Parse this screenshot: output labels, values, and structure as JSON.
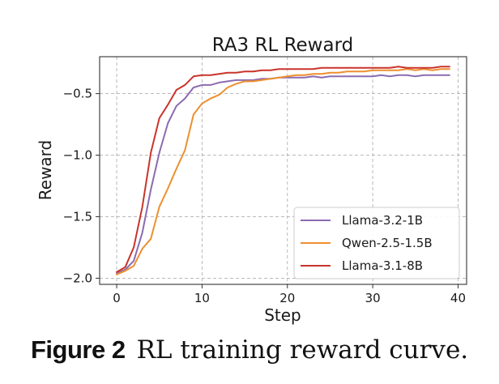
{
  "chart_data": {
    "type": "line",
    "title": "RA3 RL Reward",
    "xlabel": "Step",
    "ylabel": "Reward",
    "xlim": [
      -2,
      41
    ],
    "ylim": [
      -2.05,
      -0.2
    ],
    "xticks": [
      0,
      10,
      20,
      30,
      40
    ],
    "yticks": [
      -2.0,
      -1.5,
      -1.0,
      -0.5
    ],
    "grid": true,
    "legend_position": "lower-right",
    "series": [
      {
        "name": "Llama-3.2-1B",
        "color": "#8c6bb1",
        "x": [
          0,
          1,
          2,
          3,
          4,
          5,
          6,
          7,
          8,
          9,
          10,
          11,
          12,
          13,
          14,
          15,
          16,
          17,
          18,
          19,
          20,
          21,
          22,
          23,
          24,
          25,
          26,
          27,
          28,
          29,
          30,
          31,
          32,
          33,
          34,
          35,
          36,
          37,
          38,
          39
        ],
        "y": [
          -1.96,
          -1.93,
          -1.86,
          -1.63,
          -1.28,
          -0.98,
          -0.74,
          -0.6,
          -0.54,
          -0.45,
          -0.43,
          -0.43,
          -0.41,
          -0.4,
          -0.39,
          -0.39,
          -0.39,
          -0.38,
          -0.38,
          -0.37,
          -0.37,
          -0.37,
          -0.37,
          -0.36,
          -0.37,
          -0.36,
          -0.36,
          -0.36,
          -0.36,
          -0.36,
          -0.36,
          -0.35,
          -0.36,
          -0.35,
          -0.35,
          -0.36,
          -0.35,
          -0.35,
          -0.35,
          -0.35
        ]
      },
      {
        "name": "Qwen-2.5-1.5B",
        "color": "#ee8f2f",
        "x": [
          0,
          1,
          2,
          3,
          4,
          5,
          6,
          7,
          8,
          9,
          10,
          11,
          12,
          13,
          14,
          15,
          16,
          17,
          18,
          19,
          20,
          21,
          22,
          23,
          24,
          25,
          26,
          27,
          28,
          29,
          30,
          31,
          32,
          33,
          34,
          35,
          36,
          37,
          38,
          39
        ],
        "y": [
          -1.97,
          -1.94,
          -1.9,
          -1.76,
          -1.68,
          -1.42,
          -1.27,
          -1.11,
          -0.96,
          -0.67,
          -0.58,
          -0.54,
          -0.51,
          -0.45,
          -0.42,
          -0.4,
          -0.4,
          -0.39,
          -0.38,
          -0.37,
          -0.36,
          -0.35,
          -0.35,
          -0.34,
          -0.34,
          -0.33,
          -0.33,
          -0.32,
          -0.32,
          -0.32,
          -0.31,
          -0.31,
          -0.31,
          -0.31,
          -0.3,
          -0.31,
          -0.3,
          -0.31,
          -0.3,
          -0.3
        ]
      },
      {
        "name": "Llama-3.1-8B",
        "color": "#c9342b",
        "x": [
          0,
          1,
          2,
          3,
          4,
          5,
          6,
          7,
          8,
          9,
          10,
          11,
          12,
          13,
          14,
          15,
          16,
          17,
          18,
          19,
          20,
          21,
          22,
          23,
          24,
          25,
          26,
          27,
          28,
          29,
          30,
          31,
          32,
          33,
          34,
          35,
          36,
          37,
          38,
          39
        ],
        "y": [
          -1.95,
          -1.91,
          -1.75,
          -1.42,
          -0.98,
          -0.7,
          -0.59,
          -0.47,
          -0.43,
          -0.36,
          -0.35,
          -0.35,
          -0.34,
          -0.33,
          -0.33,
          -0.32,
          -0.32,
          -0.31,
          -0.31,
          -0.3,
          -0.3,
          -0.3,
          -0.3,
          -0.3,
          -0.29,
          -0.29,
          -0.29,
          -0.29,
          -0.29,
          -0.29,
          -0.29,
          -0.29,
          -0.29,
          -0.28,
          -0.29,
          -0.29,
          -0.29,
          -0.29,
          -0.28,
          -0.28
        ]
      }
    ]
  },
  "caption": {
    "label": "Figure 2",
    "text": "RL training reward curve."
  }
}
